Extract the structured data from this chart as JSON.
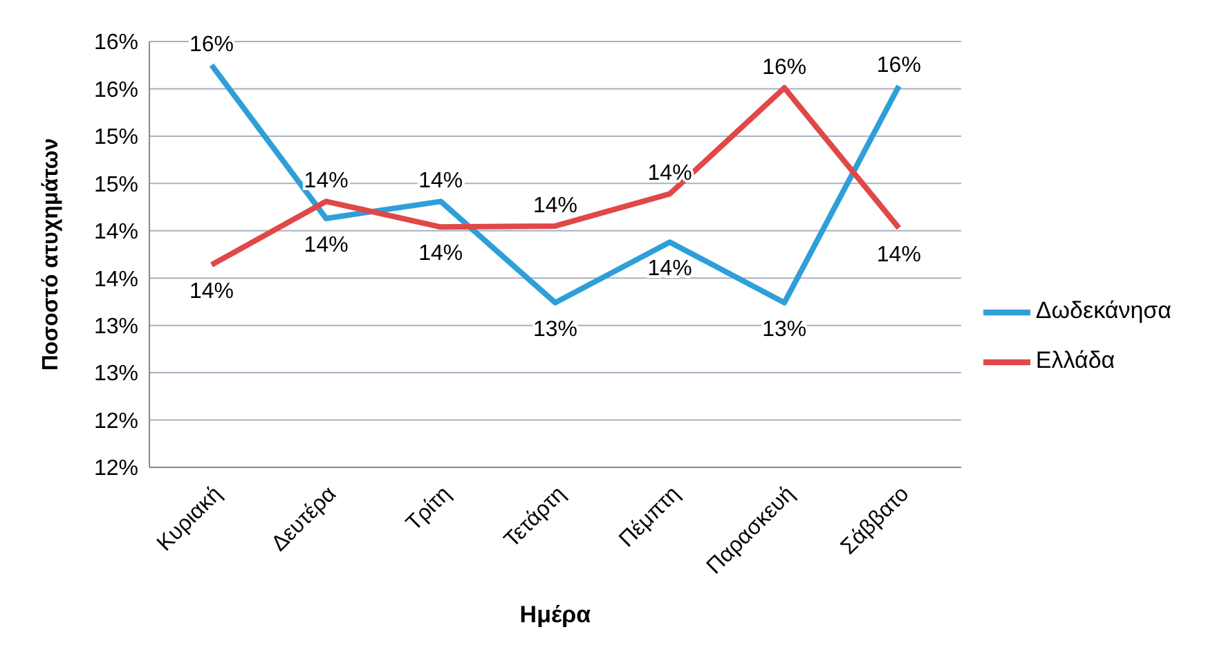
{
  "chart_data": {
    "type": "line",
    "xlabel": "Ημέρα",
    "ylabel": "Ποσοστό ατυχημάτων",
    "categories": [
      "Κυριακή",
      "Δευτέρα",
      "Τρίτη",
      "Τετάρτη",
      "Πέμπτη",
      "Παρασκευή",
      "Σάββατο"
    ],
    "series": [
      {
        "name": "Δωδεκάνησα",
        "color": "#2e9fd8",
        "values": [
          15.75,
          14.13,
          14.31,
          13.24,
          13.88,
          13.24,
          15.53
        ],
        "value_labels": [
          "16%",
          "14%",
          "14%",
          "13%",
          "14%",
          "13%",
          "16%"
        ]
      },
      {
        "name": "Ελλάδα",
        "color": "#e04848",
        "values": [
          13.64,
          14.31,
          14.04,
          14.05,
          14.39,
          15.51,
          14.03
        ],
        "value_labels": [
          "14%",
          "14%",
          "14%",
          "14%",
          "14%",
          "16%",
          "14%"
        ]
      }
    ],
    "ylim": [
      11.5,
      16
    ],
    "yticks": [
      {
        "value": 11.5,
        "label": "12%"
      },
      {
        "value": 12,
        "label": "12%"
      },
      {
        "value": 12.5,
        "label": "13%"
      },
      {
        "value": 13,
        "label": "13%"
      },
      {
        "value": 13.5,
        "label": "14%"
      },
      {
        "value": 14,
        "label": "14%"
      },
      {
        "value": 14.5,
        "label": "15%"
      },
      {
        "value": 15,
        "label": "15%"
      },
      {
        "value": 15.5,
        "label": "16%"
      },
      {
        "value": 16,
        "label": "16%"
      }
    ],
    "grid": "y",
    "legend": "right",
    "marker": "none",
    "line_style": "solid"
  }
}
